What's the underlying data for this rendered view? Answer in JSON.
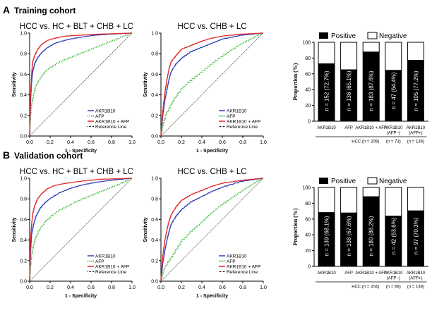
{
  "panels": [
    {
      "letter": "A",
      "title": "Training cohort",
      "roc": [
        {
          "title": "HCC vs. HC + BLT + CHB + LC",
          "xlabel": "1 - Specificity",
          "ylabel": "Sensitivity",
          "legend": [
            "AKR1B10",
            "AFP",
            "AKR1B10 + AFP",
            "Reference Line"
          ]
        },
        {
          "title": "HCC vs. CHB + LC",
          "xlabel": "1 - Specificity",
          "ylabel": "Sensitivity",
          "legend": [
            "AKR1B10",
            "AFP",
            "AKR1B10 + AFP",
            "Reference Line"
          ]
        }
      ],
      "bar": {
        "legend_positive": "Positive",
        "legend_negative": "Negative",
        "ylabel": "Proportion (%)",
        "labels": [
          "n = 152 (72.7%)",
          "n = 136 (65.1%)",
          "n = 183 (87.6%)",
          "n = 47 (64.4%)",
          "n = 105 (77.2%)"
        ],
        "cat_line1": [
          "AKR1B10",
          "AFP",
          "AKR1B10 + AFP",
          "AKR1B10",
          "AKR1B10"
        ],
        "cat_line2": [
          "",
          "",
          "",
          "(AFP−)",
          "(AFP+)"
        ],
        "group_main": "HCC (n = 209)",
        "group_neg": "(n = 73)",
        "group_pos": "(n = 136)"
      }
    },
    {
      "letter": "B",
      "title": "Validation cohort",
      "roc": [
        {
          "title": "HCC vs. HC + BLT + CHB + LC",
          "xlabel": "1 - Specificity",
          "ylabel": "Sensitivity",
          "legend": [
            "AKR1B10",
            "AFP",
            "AKR1B10 + AFP",
            "Reference Line"
          ]
        },
        {
          "title": "HCC vs. CHB + LC",
          "xlabel": "1 - Specificity",
          "ylabel": "Sensitivity",
          "legend": [
            "AKR1B10",
            "AFP",
            "AKR1B10 + AFP",
            "Reference Line"
          ]
        }
      ],
      "bar": {
        "legend_positive": "Positive",
        "legend_negative": "Negative",
        "ylabel": "Proportion (%)",
        "labels": [
          "n = 139 (68.1%)",
          "n = 138 (67.6%)",
          "n = 180 (88.2%)",
          "n = 42 (63.6%)",
          "n = 97 (70.3%)"
        ],
        "cat_line1": [
          "AKR1B10",
          "AFP",
          "AKR1B10 + AFP",
          "AKR1B10",
          "AKR1B10"
        ],
        "cat_line2": [
          "",
          "",
          "",
          "(AFP−)",
          "(AFP+)"
        ],
        "group_main": "HCC (n = 204)",
        "group_neg": "(n = 66)",
        "group_pos": "(n = 138)"
      }
    }
  ],
  "colors": {
    "akr1b10": "#2f3fb8",
    "afp": "#33b833",
    "combined": "#e0262b",
    "reference": "#000000",
    "positive": "#000000",
    "negative": "#ffffff"
  },
  "chart_data": [
    {
      "type": "line",
      "title": "HCC vs. HC + BLT + CHB + LC",
      "xlabel": "1 - Specificity",
      "ylabel": "Sensitivity",
      "xlim": [
        0,
        1
      ],
      "ylim": [
        0,
        1
      ],
      "x_ticks": [
        "0.0",
        "0.2",
        "0.4",
        "0.6",
        "0.8",
        "1.0"
      ],
      "y_ticks": [
        "0.0",
        "0.2",
        "0.4",
        "0.6",
        "0.8",
        "1.0"
      ],
      "series": [
        {
          "name": "AKR1B10",
          "x": [
            0,
            0.01,
            0.02,
            0.03,
            0.05,
            0.08,
            0.12,
            0.18,
            0.25,
            0.35,
            0.5,
            0.65,
            0.8,
            1
          ],
          "y": [
            0,
            0.35,
            0.52,
            0.62,
            0.7,
            0.76,
            0.81,
            0.86,
            0.9,
            0.93,
            0.96,
            0.98,
            0.99,
            1
          ]
        },
        {
          "name": "AFP",
          "x": [
            0,
            0.01,
            0.02,
            0.04,
            0.06,
            0.1,
            0.15,
            0.2,
            0.3,
            0.4,
            0.5,
            0.6,
            0.7,
            0.8,
            0.9,
            1
          ],
          "y": [
            0,
            0.2,
            0.3,
            0.4,
            0.48,
            0.55,
            0.62,
            0.66,
            0.72,
            0.76,
            0.8,
            0.84,
            0.88,
            0.92,
            0.96,
            1
          ]
        },
        {
          "name": "AKR1B10 + AFP",
          "x": [
            0,
            0.01,
            0.02,
            0.03,
            0.05,
            0.08,
            0.12,
            0.18,
            0.25,
            0.35,
            0.5,
            0.7,
            1
          ],
          "y": [
            0,
            0.4,
            0.6,
            0.72,
            0.78,
            0.84,
            0.89,
            0.93,
            0.95,
            0.97,
            0.98,
            0.99,
            1
          ]
        },
        {
          "name": "Reference Line",
          "x": [
            0,
            1
          ],
          "y": [
            0,
            1
          ]
        }
      ]
    },
    {
      "type": "line",
      "title": "HCC vs. CHB + LC",
      "xlabel": "1 - Specificity",
      "ylabel": "Sensitivity",
      "xlim": [
        0,
        1
      ],
      "ylim": [
        0,
        1
      ],
      "x_ticks": [
        "0.0",
        "0.2",
        "0.4",
        "0.6",
        "0.8",
        "1.0"
      ],
      "y_ticks": [
        "0.0",
        "0.2",
        "0.4",
        "0.6",
        "0.8",
        "1.0"
      ],
      "series": [
        {
          "name": "AKR1B10",
          "x": [
            0,
            0.02,
            0.04,
            0.06,
            0.08,
            0.1,
            0.15,
            0.2,
            0.3,
            0.4,
            0.5,
            0.6,
            0.8,
            1
          ],
          "y": [
            0,
            0.2,
            0.35,
            0.45,
            0.55,
            0.62,
            0.7,
            0.75,
            0.82,
            0.86,
            0.9,
            0.94,
            0.98,
            1
          ]
        },
        {
          "name": "AFP",
          "x": [
            0,
            0.02,
            0.05,
            0.1,
            0.15,
            0.2,
            0.3,
            0.4,
            0.5,
            0.6,
            0.7,
            0.8,
            0.9,
            1
          ],
          "y": [
            0,
            0.1,
            0.2,
            0.3,
            0.38,
            0.45,
            0.54,
            0.62,
            0.7,
            0.77,
            0.84,
            0.9,
            0.95,
            1
          ]
        },
        {
          "name": "AKR1B10 + AFP",
          "x": [
            0,
            0.02,
            0.04,
            0.06,
            0.08,
            0.1,
            0.15,
            0.2,
            0.3,
            0.4,
            0.5,
            0.6,
            0.8,
            1
          ],
          "y": [
            0,
            0.25,
            0.42,
            0.55,
            0.65,
            0.72,
            0.78,
            0.84,
            0.88,
            0.92,
            0.95,
            0.97,
            0.99,
            1
          ]
        },
        {
          "name": "Reference Line",
          "x": [
            0,
            1
          ],
          "y": [
            0,
            1
          ]
        }
      ]
    },
    {
      "type": "bar",
      "title": "Training cohort",
      "ylabel": "Proportion (%)",
      "ylim": [
        0,
        100
      ],
      "y_ticks": [
        "0",
        "20",
        "40",
        "60",
        "80",
        "100"
      ],
      "categories": [
        "AKR1B10",
        "AFP",
        "AKR1B10 + AFP",
        "AKR1B10 (AFP−)",
        "AKR1B10 (AFP+)"
      ],
      "series": [
        {
          "name": "Positive",
          "values": [
            72.7,
            65.1,
            87.6,
            64.4,
            77.2
          ]
        },
        {
          "name": "Negative",
          "values": [
            27.3,
            34.9,
            12.4,
            35.6,
            22.8
          ]
        }
      ]
    },
    {
      "type": "line",
      "title": "HCC vs. HC + BLT + CHB + LC",
      "xlabel": "1 - Specificity",
      "ylabel": "Sensitivity",
      "xlim": [
        0,
        1
      ],
      "ylim": [
        0,
        1
      ],
      "x_ticks": [
        "0.0",
        "0.2",
        "0.4",
        "0.6",
        "0.8",
        "1.0"
      ],
      "y_ticks": [
        "0.0",
        "0.2",
        "0.4",
        "0.6",
        "0.8",
        "1.0"
      ],
      "series": [
        {
          "name": "AKR1B10",
          "x": [
            0,
            0.01,
            0.02,
            0.04,
            0.06,
            0.1,
            0.15,
            0.2,
            0.3,
            0.4,
            0.5,
            0.65,
            0.8,
            1
          ],
          "y": [
            0,
            0.3,
            0.45,
            0.55,
            0.62,
            0.7,
            0.76,
            0.8,
            0.86,
            0.9,
            0.93,
            0.96,
            0.98,
            1
          ]
        },
        {
          "name": "AFP",
          "x": [
            0,
            0.01,
            0.02,
            0.04,
            0.06,
            0.1,
            0.15,
            0.2,
            0.3,
            0.4,
            0.5,
            0.6,
            0.7,
            0.8,
            0.9,
            1
          ],
          "y": [
            0,
            0.15,
            0.25,
            0.35,
            0.42,
            0.5,
            0.57,
            0.62,
            0.69,
            0.74,
            0.79,
            0.83,
            0.87,
            0.91,
            0.95,
            1
          ]
        },
        {
          "name": "AKR1B10 + AFP",
          "x": [
            0,
            0.01,
            0.02,
            0.03,
            0.05,
            0.08,
            0.12,
            0.18,
            0.25,
            0.35,
            0.5,
            0.7,
            1
          ],
          "y": [
            0,
            0.4,
            0.55,
            0.65,
            0.73,
            0.8,
            0.85,
            0.9,
            0.93,
            0.95,
            0.97,
            0.99,
            1
          ]
        },
        {
          "name": "Reference Line",
          "x": [
            0,
            1
          ],
          "y": [
            0,
            1
          ]
        }
      ]
    },
    {
      "type": "line",
      "title": "HCC vs. CHB + LC",
      "xlabel": "1 - Specificity",
      "ylabel": "Sensitivity",
      "xlim": [
        0,
        1
      ],
      "ylim": [
        0,
        1
      ],
      "x_ticks": [
        "0.0",
        "0.2",
        "0.4",
        "0.6",
        "0.8",
        "1.0"
      ],
      "y_ticks": [
        "0.0",
        "0.2",
        "0.4",
        "0.6",
        "0.8",
        "1.0"
      ],
      "series": [
        {
          "name": "AKR1B10",
          "x": [
            0,
            0.02,
            0.04,
            0.06,
            0.08,
            0.1,
            0.15,
            0.2,
            0.3,
            0.4,
            0.5,
            0.6,
            0.8,
            1
          ],
          "y": [
            0,
            0.18,
            0.3,
            0.4,
            0.48,
            0.55,
            0.63,
            0.69,
            0.77,
            0.82,
            0.87,
            0.91,
            0.97,
            1
          ]
        },
        {
          "name": "AFP",
          "x": [
            0,
            0.02,
            0.05,
            0.1,
            0.15,
            0.2,
            0.3,
            0.4,
            0.5,
            0.6,
            0.7,
            0.8,
            0.9,
            1
          ],
          "y": [
            0,
            0.08,
            0.15,
            0.22,
            0.3,
            0.38,
            0.48,
            0.57,
            0.66,
            0.74,
            0.81,
            0.88,
            0.94,
            1
          ]
        },
        {
          "name": "AKR1B10 + AFP",
          "x": [
            0,
            0.02,
            0.04,
            0.06,
            0.08,
            0.1,
            0.15,
            0.2,
            0.3,
            0.4,
            0.5,
            0.6,
            0.8,
            1
          ],
          "y": [
            0,
            0.25,
            0.4,
            0.5,
            0.58,
            0.64,
            0.72,
            0.78,
            0.84,
            0.88,
            0.92,
            0.95,
            0.98,
            1
          ]
        },
        {
          "name": "Reference Line",
          "x": [
            0,
            1
          ],
          "y": [
            0,
            1
          ]
        }
      ]
    },
    {
      "type": "bar",
      "title": "Validation cohort",
      "ylabel": "Proportion (%)",
      "ylim": [
        0,
        100
      ],
      "y_ticks": [
        "0",
        "20",
        "40",
        "60",
        "80",
        "100"
      ],
      "categories": [
        "AKR1B10",
        "AFP",
        "AKR1B10 + AFP",
        "AKR1B10 (AFP−)",
        "AKR1B10 (AFP+)"
      ],
      "series": [
        {
          "name": "Positive",
          "values": [
            68.1,
            67.6,
            88.2,
            63.6,
            70.3
          ]
        },
        {
          "name": "Negative",
          "values": [
            31.9,
            32.4,
            11.8,
            36.4,
            29.7
          ]
        }
      ]
    }
  ]
}
